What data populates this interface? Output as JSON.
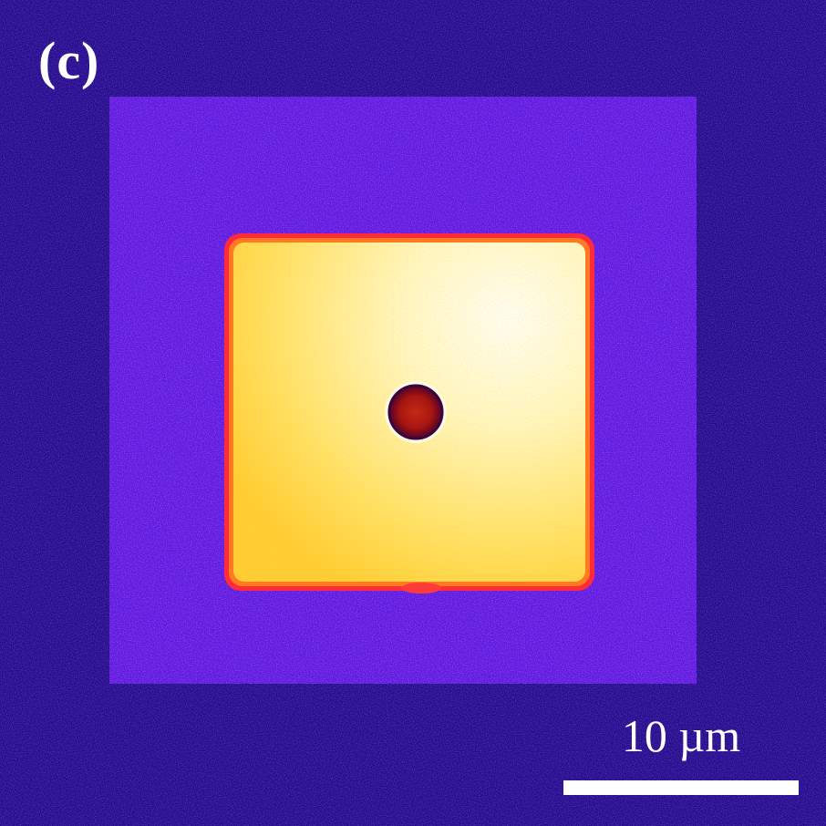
{
  "image": {
    "panel_label": "(c)",
    "scale_bar_label": "10 µm",
    "colors": {
      "background": "#1f0a8a",
      "outer_square": "#5a1ae0",
      "inner_square": "#fff3a0",
      "inner_square_edge": "#ff2a2a",
      "center_spot": "#b01818",
      "scale_bar": "#ffffff",
      "text": "#ffffff"
    }
  }
}
